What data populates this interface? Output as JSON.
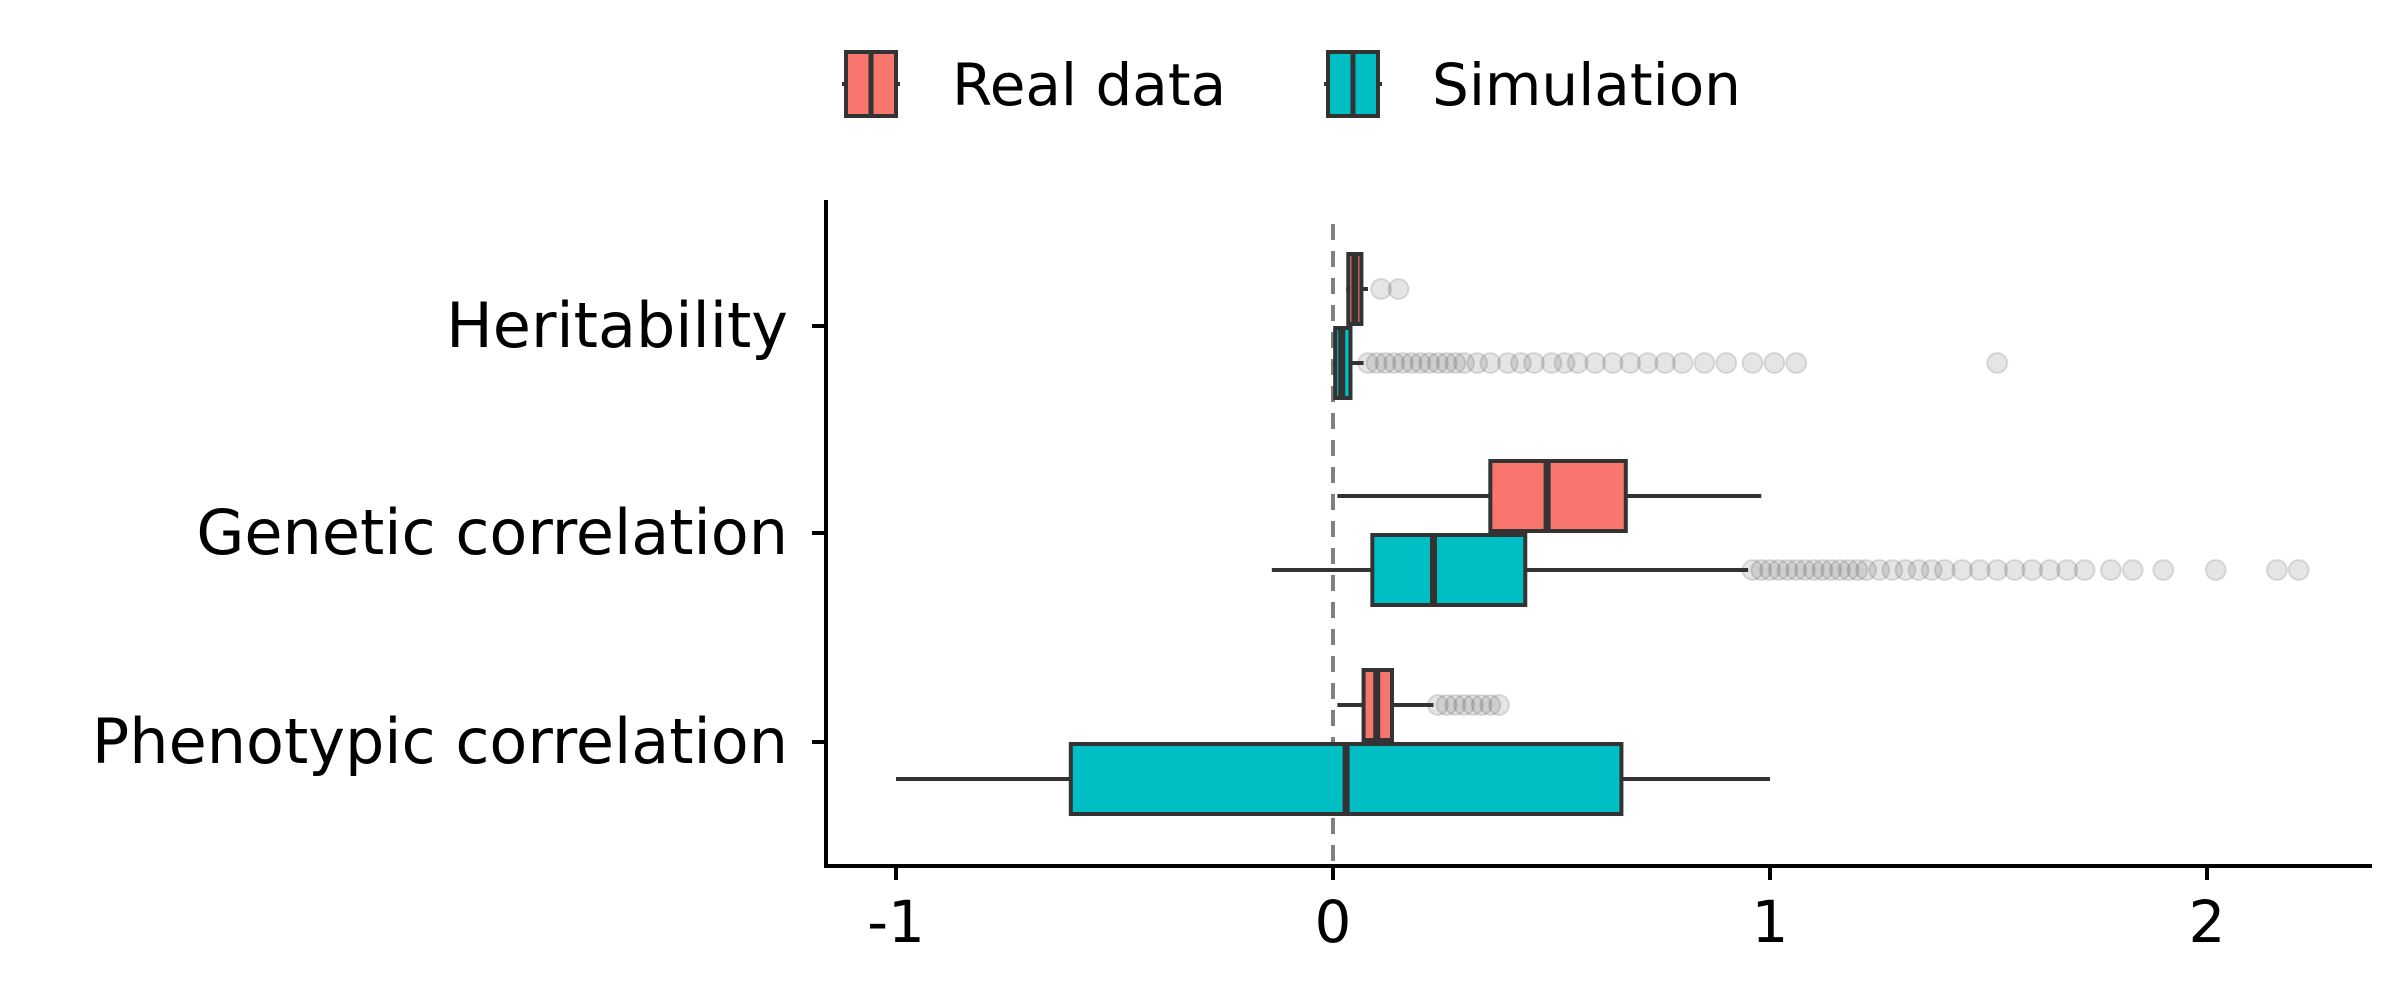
{
  "chart_data": {
    "type": "boxplot",
    "orientation": "horizontal",
    "title": "",
    "xlabel": "",
    "ylabel": "",
    "xlim": [
      -1.16,
      2.37
    ],
    "x_ticks": [
      -1,
      0,
      1,
      2
    ],
    "x_tick_labels": [
      "-1",
      "0",
      "1",
      "2"
    ],
    "categories": [
      "Heritability",
      "Genetic correlation",
      "Phenotypic correlation"
    ],
    "reference_line": {
      "x": 0,
      "style": "dashed",
      "color": "#808080"
    },
    "legend": {
      "placement": "top-center",
      "entries": [
        "Real data",
        "Simulation"
      ]
    },
    "grid": false,
    "series": [
      {
        "name": "Real data",
        "color": "#F8766D",
        "boxes": [
          {
            "category": "Heritability",
            "whisker_low": 0.03,
            "q1": 0.035,
            "median": 0.05,
            "q3": 0.065,
            "whisker_high": 0.08,
            "outliers": [
              0.11,
              0.15
            ]
          },
          {
            "category": "Genetic correlation",
            "whisker_low": 0.01,
            "q1": 0.36,
            "median": 0.49,
            "q3": 0.67,
            "whisker_high": 0.98,
            "outliers": []
          },
          {
            "category": "Phenotypic correlation",
            "whisker_low": 0.01,
            "q1": 0.07,
            "median": 0.1,
            "q3": 0.135,
            "whisker_high": 0.23,
            "outliers": [
              0.24,
              0.26,
              0.28,
              0.3,
              0.32,
              0.34,
              0.36,
              0.38
            ]
          }
        ]
      },
      {
        "name": "Simulation",
        "color": "#00BFC4",
        "boxes": [
          {
            "category": "Heritability",
            "whisker_low": 0.0,
            "q1": 0.005,
            "median": 0.02,
            "q3": 0.04,
            "whisker_high": 0.07,
            "outliers": [
              0.08,
              0.1,
              0.12,
              0.14,
              0.16,
              0.18,
              0.2,
              0.22,
              0.24,
              0.26,
              0.28,
              0.3,
              0.33,
              0.36,
              0.4,
              0.43,
              0.46,
              0.5,
              0.53,
              0.56,
              0.6,
              0.64,
              0.68,
              0.72,
              0.76,
              0.8,
              0.85,
              0.9,
              0.96,
              1.01,
              1.06,
              1.52
            ]
          },
          {
            "category": "Genetic correlation",
            "whisker_low": -0.14,
            "q1": 0.09,
            "median": 0.23,
            "q3": 0.44,
            "whisker_high": 0.95,
            "outliers": [
              0.96,
              0.98,
              1.0,
              1.02,
              1.04,
              1.06,
              1.08,
              1.1,
              1.12,
              1.14,
              1.16,
              1.18,
              1.2,
              1.22,
              1.25,
              1.28,
              1.31,
              1.34,
              1.37,
              1.4,
              1.44,
              1.48,
              1.52,
              1.56,
              1.6,
              1.64,
              1.68,
              1.72,
              1.78,
              1.83,
              1.9,
              2.02,
              2.16,
              2.21
            ]
          },
          {
            "category": "Phenotypic correlation",
            "whisker_low": -1.0,
            "q1": -0.6,
            "median": 0.03,
            "q3": 0.66,
            "whisker_high": 1.0,
            "outliers": []
          }
        ]
      }
    ]
  }
}
